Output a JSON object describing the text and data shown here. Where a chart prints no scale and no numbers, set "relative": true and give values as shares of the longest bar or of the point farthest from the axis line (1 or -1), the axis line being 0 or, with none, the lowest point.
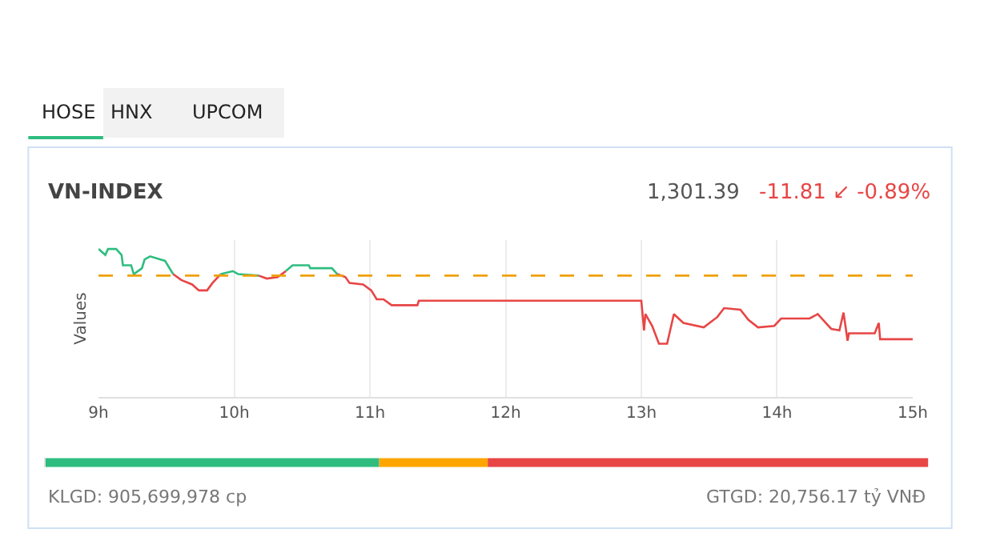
{
  "chart_data": [
    {
      "type": "line",
      "title": "VN-INDEX",
      "ylabel": "Values",
      "relative": true,
      "grid": "x",
      "marker": "none",
      "line_style": "solid",
      "x": [
        9.0,
        9.05,
        9.07,
        9.13,
        9.17,
        9.18,
        9.24,
        9.26,
        9.32,
        9.34,
        9.38,
        9.49,
        9.55,
        9.61,
        9.69,
        9.74,
        9.8,
        9.84,
        9.9,
        9.99,
        10.03,
        10.18,
        10.24,
        10.32,
        10.38,
        10.43,
        10.55,
        10.56,
        10.72,
        10.76,
        10.82,
        10.85,
        10.95,
        11.01,
        11.05,
        11.1,
        11.16,
        11.35,
        11.36,
        13.0,
        13.02,
        13.03,
        13.08,
        13.13,
        13.19,
        13.24,
        13.31,
        13.46,
        13.56,
        13.61,
        13.73,
        13.79,
        13.86,
        13.98,
        14.03,
        14.24,
        14.3,
        14.34,
        14.4,
        14.46,
        14.49,
        14.52,
        14.53,
        14.72,
        14.75,
        14.76,
        15.0
      ],
      "xlim": [
        9,
        15
      ],
      "xticks": [
        {
          "value": 9,
          "label": "9h"
        },
        {
          "value": 10,
          "label": "10h"
        },
        {
          "value": 11,
          "label": "11h"
        },
        {
          "value": 12,
          "label": "12h"
        },
        {
          "value": 13,
          "label": "13h"
        },
        {
          "value": 14,
          "label": "14h"
        },
        {
          "value": 15,
          "label": "15h"
        }
      ],
      "series": [
        {
          "color": "#2ebd7f",
          "values": [
            1.0,
            0.96,
            1.0,
            1.0,
            0.96,
            0.89,
            0.89,
            0.83,
            0.87,
            0.93,
            0.95,
            0.92,
            0.83,
            null,
            null,
            null,
            null,
            null,
            0.83,
            0.85,
            0.83,
            0.82,
            null,
            null,
            0.85,
            0.89,
            0.89,
            0.87,
            0.87,
            0.83,
            null,
            null,
            null,
            null,
            null,
            null,
            null,
            null,
            null,
            null,
            null,
            null,
            null,
            null,
            null,
            null,
            null,
            null,
            null,
            null,
            null,
            null,
            null,
            null,
            null,
            null,
            null,
            null,
            null,
            null,
            null,
            null,
            null,
            null,
            null,
            null,
            null
          ]
        },
        {
          "color": "#e84545",
          "values": [
            null,
            null,
            null,
            null,
            null,
            null,
            null,
            null,
            null,
            null,
            null,
            null,
            0.83,
            0.79,
            0.76,
            0.72,
            0.72,
            0.77,
            0.83,
            null,
            null,
            0.82,
            0.8,
            0.81,
            0.85,
            null,
            null,
            null,
            null,
            0.83,
            0.81,
            0.77,
            0.76,
            0.72,
            0.66,
            0.66,
            0.62,
            0.62,
            0.65,
            0.65,
            0.45,
            0.56,
            0.48,
            0.36,
            0.36,
            0.56,
            0.5,
            0.47,
            0.54,
            0.6,
            0.59,
            0.52,
            0.47,
            0.48,
            0.53,
            0.53,
            0.56,
            0.52,
            0.46,
            0.45,
            0.57,
            0.38,
            0.43,
            0.43,
            0.5,
            0.39,
            0.39
          ]
        }
      ],
      "ref_lines": [
        {
          "axis": "y",
          "value": 0.82,
          "color": "#f0a000",
          "line_style": "dashed"
        }
      ],
      "annotations": [
        "HOSE",
        "HNX",
        "UPCOM",
        "1,301.39",
        "-11.81 ↙ -0.89%",
        "KLGD: 905,699,978 cp",
        "GTGD: 20,756.17 tỷ VNĐ"
      ]
    },
    {
      "type": "bar",
      "orientation": "horizontal",
      "stacked": true,
      "relative": true,
      "categories": [
        null
      ],
      "series": [
        {
          "color": "#2ebd7f",
          "values": [
            0.378
          ]
        },
        {
          "color": "#ffa500",
          "values": [
            0.123
          ]
        },
        {
          "color": "#e84545",
          "values": [
            0.499
          ]
        }
      ]
    }
  ]
}
